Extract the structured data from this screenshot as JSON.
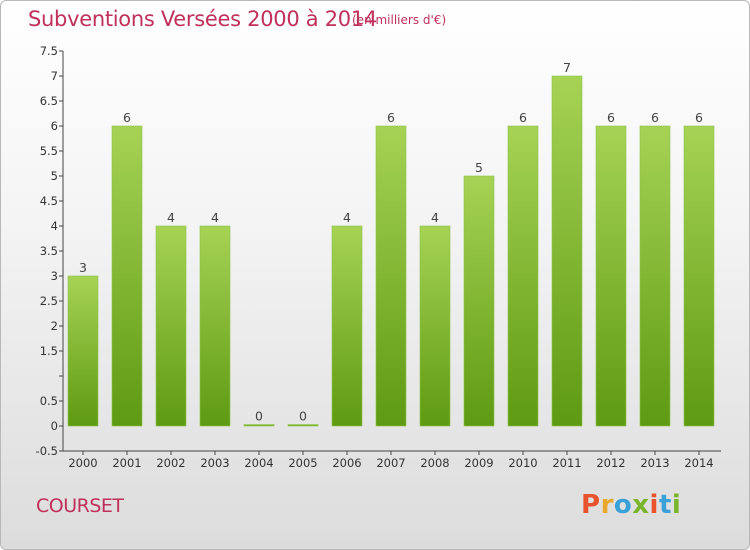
{
  "header": {
    "title": "Subventions Versées 2000 à 2014",
    "unit": "(en milliers d'€)"
  },
  "footer": {
    "commune": "COURSET",
    "logo_text": "Proxiti"
  },
  "colors": {
    "title": "#c0305a",
    "bar_top": "#a6d355",
    "bar_bottom": "#5e9a12",
    "logo_letters": [
      "#e8532d",
      "#e8a82d",
      "#3aa0d8",
      "#7bb52e",
      "#e8532d",
      "#3aa0d8",
      "#7bb52e"
    ]
  },
  "chart_data": {
    "type": "bar",
    "categories": [
      "2000",
      "2001",
      "2002",
      "2003",
      "2004",
      "2005",
      "2006",
      "2007",
      "2008",
      "2009",
      "2010",
      "2011",
      "2012",
      "2013",
      "2014"
    ],
    "values": [
      3,
      6,
      4,
      4,
      0,
      0,
      4,
      6,
      4,
      5,
      6,
      7,
      6,
      6,
      6
    ],
    "data_labels": [
      "3",
      "6",
      "4",
      "4",
      "0",
      "0",
      "4",
      "6",
      "4",
      "5",
      "6",
      "7",
      "6",
      "6",
      "6"
    ],
    "title": "Subventions Versées 2000 à 2014",
    "ylim": [
      -0.5,
      7.5
    ],
    "yticks": [
      -0.5,
      0,
      0.5,
      1,
      1.5,
      2,
      2.5,
      3,
      3.5,
      4,
      4.5,
      5,
      5.5,
      6,
      6.5,
      7,
      7.5
    ],
    "ytick_labels": [
      "-0.5",
      "0",
      "0.5",
      "",
      "1.5",
      "2",
      "2.5",
      "3",
      "3.5",
      "4",
      "4.5",
      "5",
      "5.5",
      "6",
      "6.5",
      "7",
      "7.5"
    ],
    "grid": false
  }
}
